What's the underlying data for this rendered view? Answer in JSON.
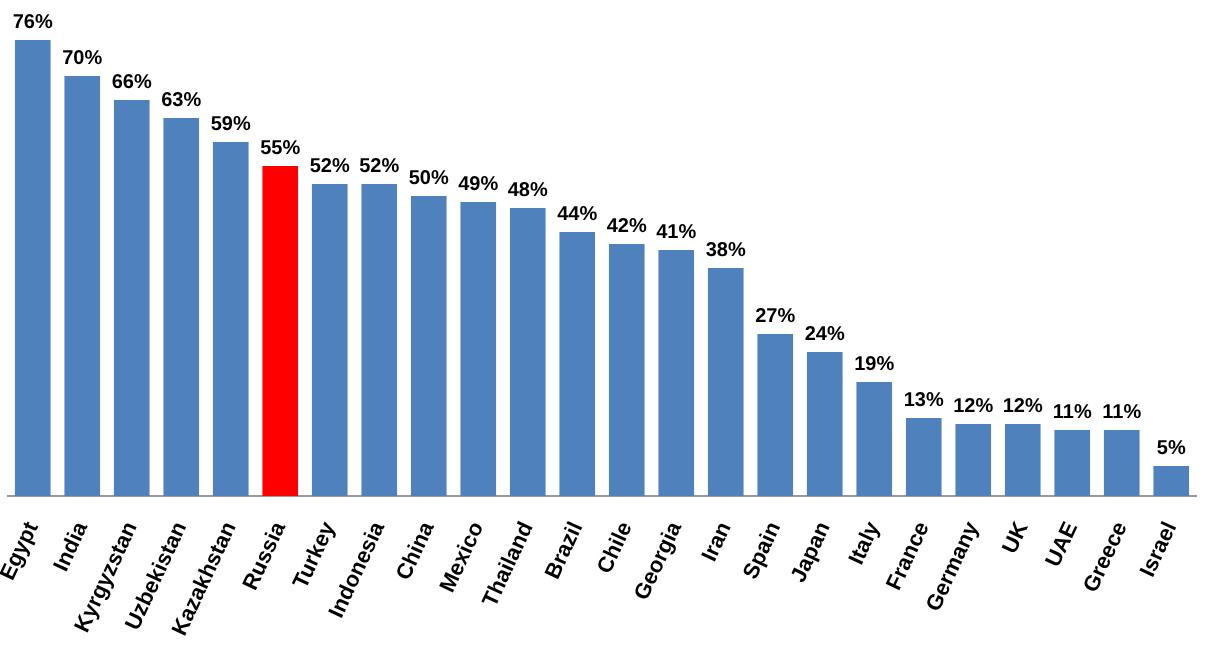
{
  "chart_data": {
    "type": "bar",
    "categories": [
      "Egypt",
      "India",
      "Kyrgyzstan",
      "Uzbekistan",
      "Kazakhstan",
      "Russia",
      "Turkey",
      "Indonesia",
      "China",
      "Mexico",
      "Thailand",
      "Brazil",
      "Chile",
      "Georgia",
      "Iran",
      "Spain",
      "Japan",
      "Italy",
      "France",
      "Germany",
      "UK",
      "UAE",
      "Greece",
      "Israel"
    ],
    "values": [
      76,
      70,
      66,
      63,
      59,
      55,
      52,
      52,
      50,
      49,
      48,
      44,
      42,
      41,
      38,
      27,
      24,
      19,
      13,
      12,
      12,
      11,
      11,
      5
    ],
    "colors": [
      "#4f81bd",
      "#4f81bd",
      "#4f81bd",
      "#4f81bd",
      "#4f81bd",
      "#ff0000",
      "#4f81bd",
      "#4f81bd",
      "#4f81bd",
      "#4f81bd",
      "#4f81bd",
      "#4f81bd",
      "#4f81bd",
      "#4f81bd",
      "#4f81bd",
      "#4f81bd",
      "#4f81bd",
      "#4f81bd",
      "#4f81bd",
      "#4f81bd",
      "#4f81bd",
      "#4f81bd",
      "#4f81bd",
      "#4f81bd"
    ],
    "value_labels": [
      "76%",
      "70%",
      "66%",
      "63%",
      "59%",
      "55%",
      "52%",
      "52%",
      "50%",
      "49%",
      "48%",
      "44%",
      "42%",
      "41%",
      "38%",
      "27%",
      "24%",
      "19%",
      "13%",
      "12%",
      "12%",
      "11%",
      "11%",
      "5%"
    ]
  }
}
